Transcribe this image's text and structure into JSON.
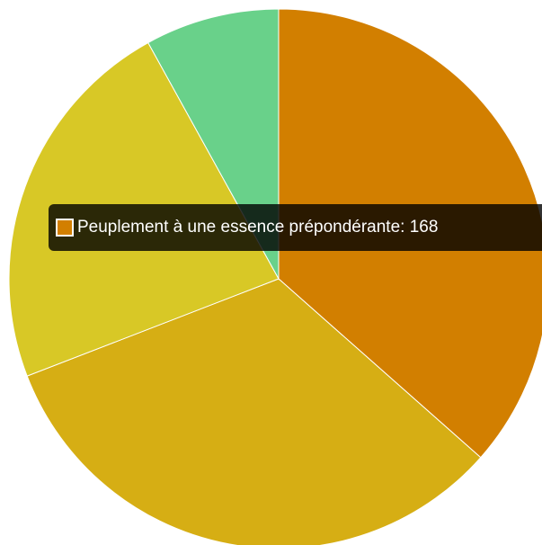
{
  "chart_data": {
    "type": "pie",
    "slices": [
      {
        "label": "Peuplement à une essence prépondérante",
        "value": 168,
        "color": "#d27f00"
      },
      {
        "label": "",
        "value": 150,
        "color": "#d6ae14"
      },
      {
        "label": "",
        "value": 105,
        "color": "#d8c826"
      },
      {
        "label": "",
        "value": 37,
        "color": "#69d18a"
      }
    ],
    "tooltip": {
      "label": "Peuplement à une essence prépondérante",
      "value": 168,
      "text": "Peuplement à une essence prépondérante: 168",
      "color": "#d27f00"
    }
  }
}
